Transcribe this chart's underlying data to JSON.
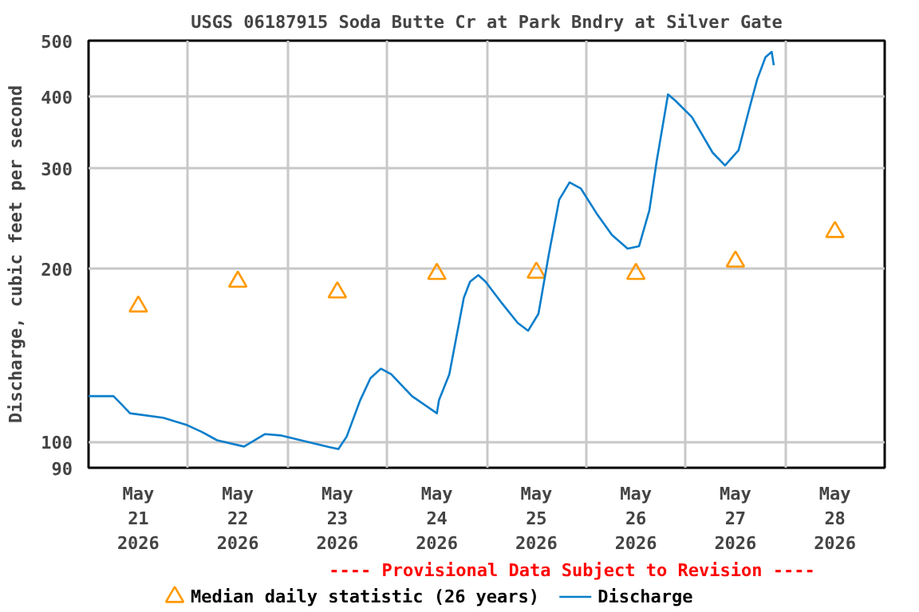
{
  "chart_data": {
    "type": "line",
    "title": "USGS 06187915 Soda Butte Cr at Park Bndry at Silver Gate",
    "ylabel": "Discharge, cubic feet per second",
    "annotations": [
      "---- Provisional Data Subject to Revision ----"
    ],
    "log": "y",
    "grid": true,
    "legend": "bottom",
    "xlim": [
      "2026-05-21T00:00",
      "2026-05-29T00:00"
    ],
    "ylim": [
      90,
      500
    ],
    "yticks": [
      90,
      100,
      200,
      300,
      400,
      500
    ],
    "xticks": [
      {
        "value": "2026-05-21T12:00",
        "label": "May\n21\n2026"
      },
      {
        "value": "2026-05-22T12:00",
        "label": "May\n22\n2026"
      },
      {
        "value": "2026-05-23T12:00",
        "label": "May\n23\n2026"
      },
      {
        "value": "2026-05-24T12:00",
        "label": "May\n24\n2026"
      },
      {
        "value": "2026-05-25T12:00",
        "label": "May\n25\n2026"
      },
      {
        "value": "2026-05-26T12:00",
        "label": "May\n26\n2026"
      },
      {
        "value": "2026-05-27T12:00",
        "label": "May\n27\n2026"
      },
      {
        "value": "2026-05-28T12:00",
        "label": "May\n28\n2026"
      },
      {
        "value": "2026-05-22T00:00",
        "label": null
      },
      {
        "value": "2026-05-23T00:00",
        "label": null
      },
      {
        "value": "2026-05-24T00:00",
        "label": null
      },
      {
        "value": "2026-05-25T00:00",
        "label": null
      },
      {
        "value": "2026-05-26T00:00",
        "label": null
      },
      {
        "value": "2026-05-27T00:00",
        "label": null
      },
      {
        "value": "2026-05-28T00:00",
        "label": null
      }
    ],
    "series": [
      {
        "name": "Median daily statistic (26 years)",
        "type": "scatter",
        "marker": "triangle",
        "color": "#ff9900",
        "x": [
          "2026-05-21T12:00",
          "2026-05-22T12:00",
          "2026-05-23T12:00",
          "2026-05-24T12:00",
          "2026-05-25T12:00",
          "2026-05-26T12:00",
          "2026-05-27T12:00",
          "2026-05-28T12:00"
        ],
        "values": [
          172,
          190,
          182,
          196,
          197,
          196,
          206,
          232
        ]
      },
      {
        "name": "Discharge",
        "color": "#0a7ecb",
        "x": [
          "2026-05-21T00:00",
          "2026-05-21T06:00",
          "2026-05-21T08:00",
          "2026-05-21T10:00",
          "2026-05-21T18:00",
          "2026-05-21T23:30",
          "2026-05-22T03:15",
          "2026-05-22T07:00",
          "2026-05-22T13:30",
          "2026-05-22T18:30",
          "2026-05-22T22:15",
          "2026-05-23T06:00",
          "2026-05-23T10:00",
          "2026-05-23T12:15",
          "2026-05-23T14:15",
          "2026-05-23T17:30",
          "2026-05-23T20:00",
          "2026-05-23T22:30",
          "2026-05-24T01:00",
          "2026-05-24T06:00",
          "2026-05-24T12:00",
          "2026-05-24T12:30",
          "2026-05-24T15:00",
          "2026-05-24T17:30",
          "2026-05-24T18:30",
          "2026-05-24T20:00",
          "2026-05-24T22:00",
          "2026-05-24T23:45",
          "2026-05-25T03:45",
          "2026-05-25T07:30",
          "2026-05-25T10:00",
          "2026-05-25T12:30",
          "2026-05-25T15:00",
          "2026-05-25T17:30",
          "2026-05-25T20:00",
          "2026-05-25T22:45",
          "2026-05-26T02:30",
          "2026-05-26T06:15",
          "2026-05-26T10:00",
          "2026-05-26T12:45",
          "2026-05-26T15:15",
          "2026-05-26T17:00",
          "2026-05-26T19:45",
          "2026-05-26T21:30",
          "2026-05-27T01:30",
          "2026-05-27T06:30",
          "2026-05-27T09:30",
          "2026-05-27T12:45",
          "2026-05-27T15:30",
          "2026-05-27T17:15",
          "2026-05-27T19:15",
          "2026-05-27T20:45",
          "2026-05-27T21:15"
        ],
        "values": [
          120,
          120,
          116,
          112,
          110,
          107,
          104,
          100.5,
          98,
          103,
          102.5,
          99.4,
          97.8,
          97,
          102,
          118,
          129,
          134,
          131,
          120,
          112,
          118,
          131,
          163,
          178,
          190,
          195,
          190,
          174,
          161,
          156,
          167,
          212,
          264,
          283,
          276,
          250,
          229,
          217,
          219,
          253,
          308,
          403,
          393,
          368,
          319,
          303,
          322,
          384,
          428,
          468,
          478,
          453
        ]
      }
    ]
  }
}
